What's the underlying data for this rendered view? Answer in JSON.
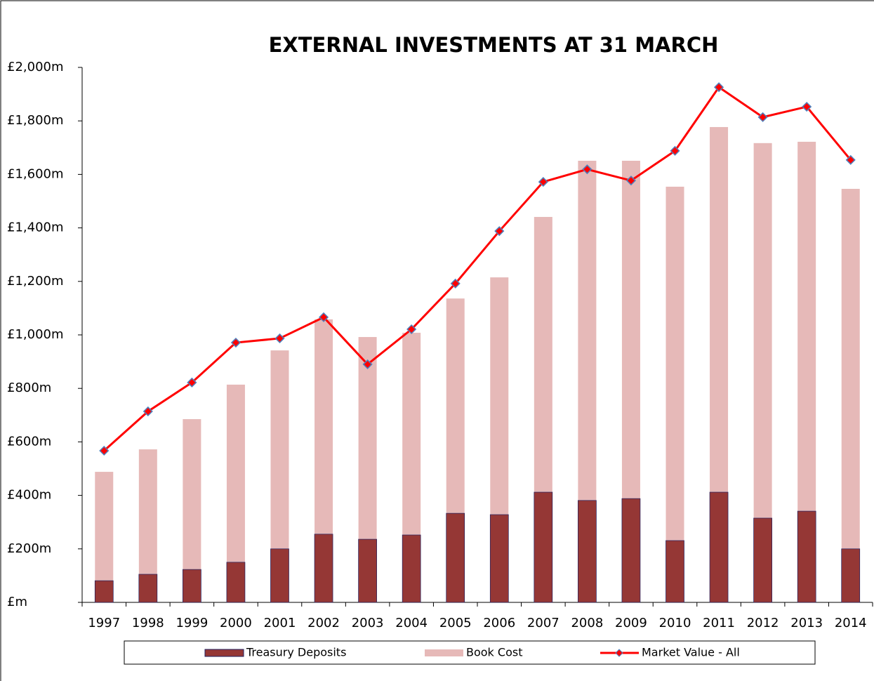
{
  "chart_data": {
    "type": "bar",
    "title": "EXTERNAL INVESTMENTS AT 31 MARCH",
    "categories": [
      "1997",
      "1998",
      "1999",
      "2000",
      "2001",
      "2002",
      "2003",
      "2004",
      "2005",
      "2006",
      "2007",
      "2008",
      "2009",
      "2010",
      "2011",
      "2012",
      "2013",
      "2014"
    ],
    "series": [
      {
        "name": "Book Cost",
        "type": "bar",
        "color": "#e6b9b8",
        "values": [
          488,
          572,
          685,
          814,
          942,
          1058,
          992,
          1008,
          1136,
          1215,
          1441,
          1651,
          1651,
          1554,
          1777,
          1717,
          1722,
          1546
        ]
      },
      {
        "name": "Treasury Deposits",
        "type": "bar",
        "color": "#953735",
        "values": [
          81,
          105,
          123,
          150,
          200,
          255,
          236,
          252,
          333,
          328,
          412,
          381,
          388,
          231,
          412,
          315,
          341,
          200
        ]
      },
      {
        "name": "Market Value - All",
        "type": "line",
        "color": "#ff0000",
        "values": [
          567,
          714,
          822,
          971,
          987,
          1066,
          890,
          1021,
          1192,
          1388,
          1572,
          1619,
          1577,
          1688,
          1926,
          1814,
          1853,
          1654
        ]
      }
    ],
    "legend_order": [
      "Treasury Deposits",
      "Book Cost",
      "Market Value - All"
    ],
    "ylim": [
      0,
      2000
    ],
    "yticks": [
      {
        "value": 0,
        "label": "£m"
      },
      {
        "value": 200,
        "label": "£200m"
      },
      {
        "value": 400,
        "label": "£400m"
      },
      {
        "value": 600,
        "label": "£600m"
      },
      {
        "value": 800,
        "label": "£800m"
      },
      {
        "value": 1000,
        "label": "£1,000m"
      },
      {
        "value": 1200,
        "label": "£1,200m"
      },
      {
        "value": 1400,
        "label": "£1,400m"
      },
      {
        "value": 1600,
        "label": "£1,600m"
      },
      {
        "value": 1800,
        "label": "£1,800m"
      },
      {
        "value": 2000,
        "label": "£2,000m"
      }
    ]
  }
}
